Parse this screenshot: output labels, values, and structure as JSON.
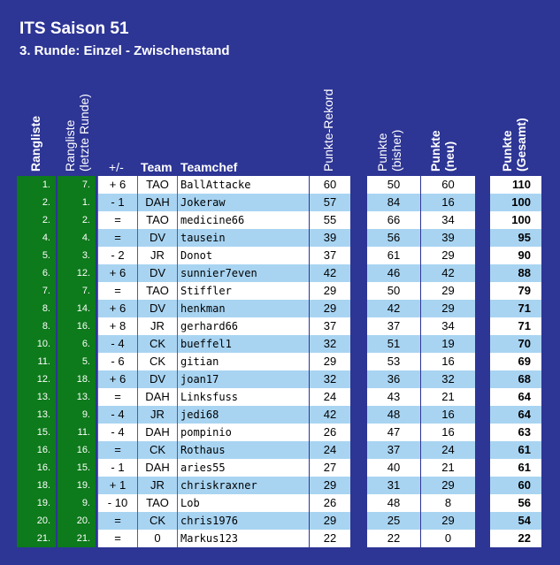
{
  "title": "ITS Saison 51",
  "subtitle": "3. Runde: Einzel - Zwischenstand",
  "headers": {
    "rangliste": "Rangliste",
    "rangliste_prev_1": "Rangliste",
    "rangliste_prev_2": "(letzte Runde)",
    "plusminus": "+/-",
    "team": "Team",
    "teamchef": "Teamchef",
    "rekord": "Punkte-Rekord",
    "bisher_1": "Punkte",
    "bisher_2": "(bisher)",
    "neu_1": "Punkte",
    "neu_2": "(neu)",
    "gesamt_1": "Punkte",
    "gesamt_2": "(Gesamt)"
  },
  "rows": [
    {
      "rank": "1.",
      "prev": "7.",
      "pm": "+ 6",
      "team": "TAO",
      "chef": "BallAttacke",
      "rekord": "60",
      "bisher": "50",
      "neu": "60",
      "gesamt": "110"
    },
    {
      "rank": "2.",
      "prev": "1.",
      "pm": "- 1",
      "team": "DAH",
      "chef": "Jokeraw",
      "rekord": "57",
      "bisher": "84",
      "neu": "16",
      "gesamt": "100"
    },
    {
      "rank": "2.",
      "prev": "2.",
      "pm": "=",
      "team": "TAO",
      "chef": "medicine66",
      "rekord": "55",
      "bisher": "66",
      "neu": "34",
      "gesamt": "100"
    },
    {
      "rank": "4.",
      "prev": "4.",
      "pm": "=",
      "team": "DV",
      "chef": "tausein",
      "rekord": "39",
      "bisher": "56",
      "neu": "39",
      "gesamt": "95"
    },
    {
      "rank": "5.",
      "prev": "3.",
      "pm": "- 2",
      "team": "JR",
      "chef": "Donot",
      "rekord": "37",
      "bisher": "61",
      "neu": "29",
      "gesamt": "90"
    },
    {
      "rank": "6.",
      "prev": "12.",
      "pm": "+ 6",
      "team": "DV",
      "chef": "sunnier7even",
      "rekord": "42",
      "bisher": "46",
      "neu": "42",
      "gesamt": "88"
    },
    {
      "rank": "7.",
      "prev": "7.",
      "pm": "=",
      "team": "TAO",
      "chef": "Stiffler",
      "rekord": "29",
      "bisher": "50",
      "neu": "29",
      "gesamt": "79"
    },
    {
      "rank": "8.",
      "prev": "14.",
      "pm": "+ 6",
      "team": "DV",
      "chef": "henkman",
      "rekord": "29",
      "bisher": "42",
      "neu": "29",
      "gesamt": "71"
    },
    {
      "rank": "8.",
      "prev": "16.",
      "pm": "+ 8",
      "team": "JR",
      "chef": "gerhard66",
      "rekord": "37",
      "bisher": "37",
      "neu": "34",
      "gesamt": "71"
    },
    {
      "rank": "10.",
      "prev": "6.",
      "pm": "- 4",
      "team": "CK",
      "chef": "bueffel1",
      "rekord": "32",
      "bisher": "51",
      "neu": "19",
      "gesamt": "70"
    },
    {
      "rank": "11.",
      "prev": "5.",
      "pm": "- 6",
      "team": "CK",
      "chef": "gitian",
      "rekord": "29",
      "bisher": "53",
      "neu": "16",
      "gesamt": "69"
    },
    {
      "rank": "12.",
      "prev": "18.",
      "pm": "+ 6",
      "team": "DV",
      "chef": "joan17",
      "rekord": "32",
      "bisher": "36",
      "neu": "32",
      "gesamt": "68"
    },
    {
      "rank": "13.",
      "prev": "13.",
      "pm": "=",
      "team": "DAH",
      "chef": "Linksfuss",
      "rekord": "24",
      "bisher": "43",
      "neu": "21",
      "gesamt": "64"
    },
    {
      "rank": "13.",
      "prev": "9.",
      "pm": "- 4",
      "team": "JR",
      "chef": "jedi68",
      "rekord": "42",
      "bisher": "48",
      "neu": "16",
      "gesamt": "64"
    },
    {
      "rank": "15.",
      "prev": "11.",
      "pm": "- 4",
      "team": "DAH",
      "chef": "pompinio",
      "rekord": "26",
      "bisher": "47",
      "neu": "16",
      "gesamt": "63"
    },
    {
      "rank": "16.",
      "prev": "16.",
      "pm": "=",
      "team": "CK",
      "chef": "Rothaus",
      "rekord": "24",
      "bisher": "37",
      "neu": "24",
      "gesamt": "61"
    },
    {
      "rank": "16.",
      "prev": "15.",
      "pm": "- 1",
      "team": "DAH",
      "chef": "aries55",
      "rekord": "27",
      "bisher": "40",
      "neu": "21",
      "gesamt": "61"
    },
    {
      "rank": "18.",
      "prev": "19.",
      "pm": "+ 1",
      "team": "JR",
      "chef": "chriskraxner",
      "rekord": "29",
      "bisher": "31",
      "neu": "29",
      "gesamt": "60"
    },
    {
      "rank": "19.",
      "prev": "9.",
      "pm": "- 10",
      "team": "TAO",
      "chef": "Lob",
      "rekord": "26",
      "bisher": "48",
      "neu": "8",
      "gesamt": "56"
    },
    {
      "rank": "20.",
      "prev": "20.",
      "pm": "=",
      "team": "CK",
      "chef": "chris1976",
      "rekord": "29",
      "bisher": "25",
      "neu": "29",
      "gesamt": "54"
    },
    {
      "rank": "21.",
      "prev": "21.",
      "pm": "=",
      "team": "0",
      "chef": "Markus123",
      "rekord": "22",
      "bisher": "22",
      "neu": "0",
      "gesamt": "22"
    }
  ]
}
